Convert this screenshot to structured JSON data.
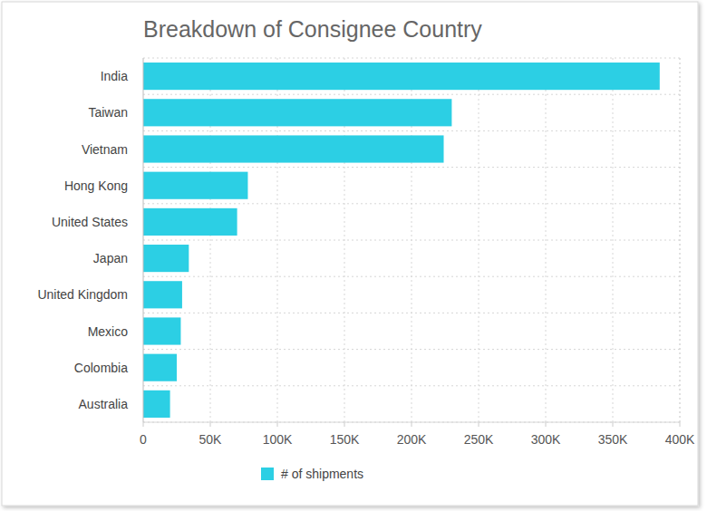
{
  "chart_data": {
    "type": "bar",
    "title": "Breakdown of Consignee Country",
    "orientation": "horizontal",
    "categories": [
      "India",
      "Taiwan",
      "Vietnam",
      "Hong Kong",
      "United States",
      "Japan",
      "United Kingdom",
      "Mexico",
      "Colombia",
      "Australia"
    ],
    "series": [
      {
        "name": "# of shipments",
        "color": "#2ccfe4",
        "values": [
          385000,
          230000,
          224000,
          78000,
          70000,
          34000,
          29000,
          28000,
          25000,
          20000
        ]
      }
    ],
    "xlim": [
      0,
      400000
    ],
    "xticks": [
      0,
      {
        "value": 50000,
        "label": "50K"
      },
      {
        "value": 100000,
        "label": "100K"
      },
      {
        "value": 150000,
        "label": "150K"
      },
      {
        "value": 200000,
        "label": "200K"
      },
      {
        "value": 250000,
        "label": "250K"
      },
      {
        "value": 300000,
        "label": "300K"
      },
      {
        "value": 350000,
        "label": "350K"
      },
      {
        "value": 400000,
        "label": "400K"
      }
    ],
    "grid": true,
    "legend": "bottom"
  }
}
